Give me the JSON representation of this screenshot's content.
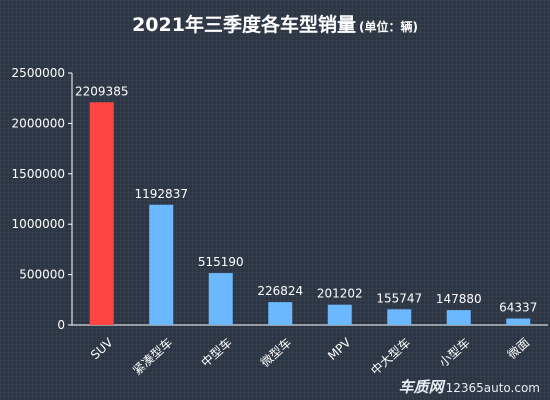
{
  "title": "2021年三季度各车型销量",
  "subtitle": "(单位：辆)",
  "watermark": {
    "brand": "车质网",
    "url": "12365auto.com"
  },
  "colors": {
    "highlight": "#ff4444",
    "bar": "#6cb8ff",
    "axis": "#ffffff",
    "text": "#ffffff"
  },
  "chart_data": {
    "type": "bar",
    "title": "2021年三季度各车型销量",
    "subtitle": "(单位：辆)",
    "categories": [
      "SUV",
      "紧凑型车",
      "中型车",
      "微型车",
      "MPV",
      "中大型车",
      "小型车",
      "微面"
    ],
    "values": [
      2209385,
      1192837,
      515190,
      226824,
      201202,
      155747,
      147880,
      64337
    ],
    "ylim": [
      0,
      2500000
    ],
    "yticks": [
      0,
      500000,
      1000000,
      1500000,
      2000000,
      2500000
    ],
    "grid": false,
    "legend": "none",
    "highlight_index": 0,
    "xlabel": "",
    "ylabel": ""
  }
}
